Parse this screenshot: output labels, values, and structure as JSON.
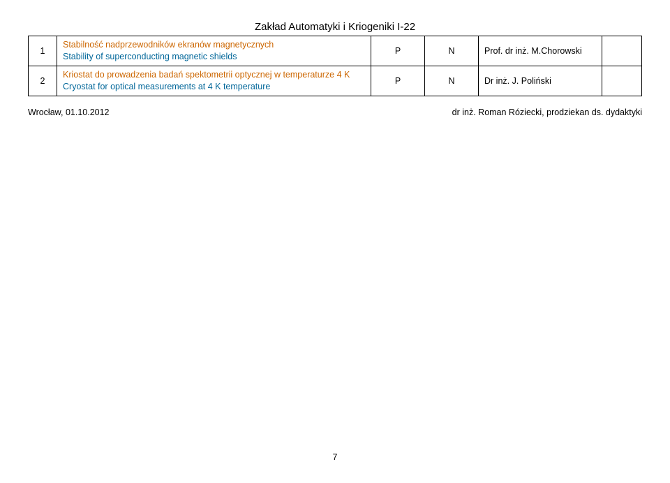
{
  "header": {
    "title": "Zakład Automatyki i Kriogeniki I-22"
  },
  "table": {
    "rows": [
      {
        "num": "1",
        "polish": "Stabilność nadprzewodników ekranów magnetycznych",
        "english": "Stability of superconducting magnetic shields",
        "c3": "P",
        "c4": "N",
        "c5": "Prof. dr inż. M.Chorowski",
        "c6": ""
      },
      {
        "num": "2",
        "polish": "Kriostat do prowadzenia badań spektometrii optycznej w temperaturze 4 K",
        "english": "Cryostat for optical measurements at 4 K temperature",
        "c3": "P",
        "c4": "N",
        "c5": "Dr inż. J. Poliński",
        "c6": ""
      }
    ]
  },
  "footer": {
    "left": "Wrocław, 01.10.2012",
    "right": "dr inż. Roman Róziecki, prodziekan ds. dydaktyki"
  },
  "pagenum": "7"
}
